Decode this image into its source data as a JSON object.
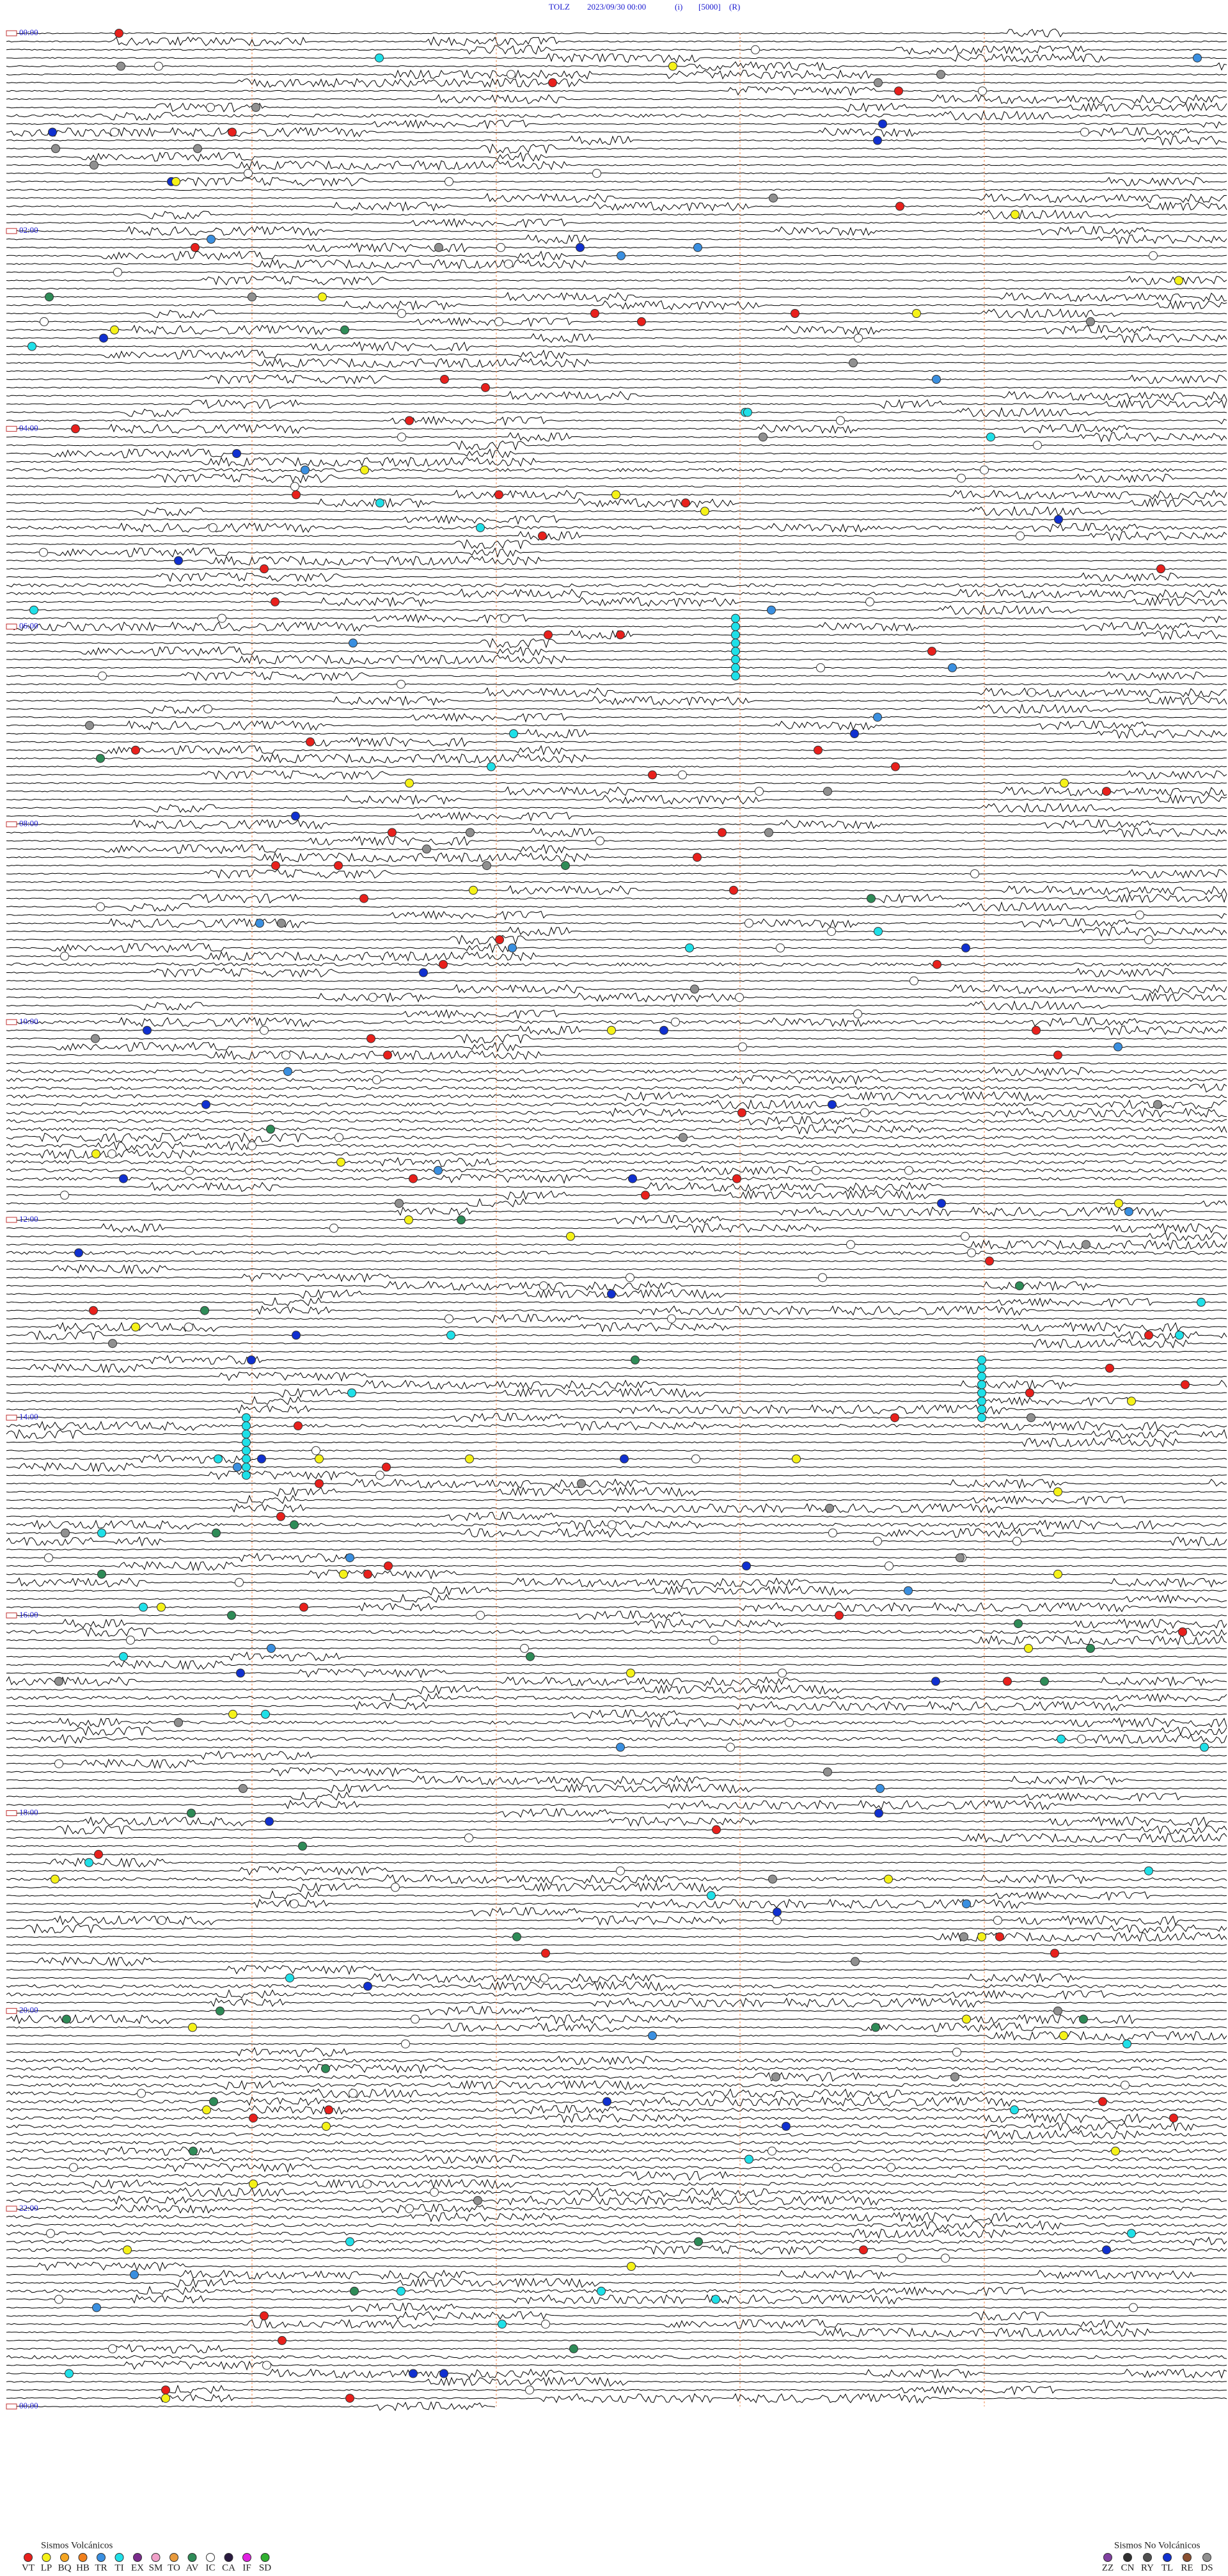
{
  "header": {
    "station": "TOLZ",
    "datetime": "2023/09/30 00:00",
    "mode": "(i)",
    "scale": "[5000]",
    "flag": "(R)"
  },
  "time_labels": [
    "00:00",
    "02:00",
    "04:00",
    "06:00",
    "08:00",
    "10:00",
    "12:00",
    "14:00",
    "16:00",
    "18:00",
    "20:00",
    "22:00",
    "00:00"
  ],
  "legend": {
    "volcanic": {
      "title": "Sismos Volcánicos",
      "items": [
        {
          "code": "VT",
          "color": "#e8201c"
        },
        {
          "code": "LP",
          "color": "#f5f218"
        },
        {
          "code": "BQ",
          "color": "#f5a623"
        },
        {
          "code": "HB",
          "color": "#f07f1c"
        },
        {
          "code": "TR",
          "color": "#3a8fe0"
        },
        {
          "code": "TI",
          "color": "#1fe0e8"
        },
        {
          "code": "EX",
          "color": "#7a2c8c"
        },
        {
          "code": "SM",
          "color": "#f0a0c8"
        },
        {
          "code": "TO",
          "color": "#e89a3c"
        },
        {
          "code": "AV",
          "color": "#2e8b57"
        },
        {
          "code": "IC",
          "color": "#ffffff"
        },
        {
          "code": "CA",
          "color": "#2a1a40"
        },
        {
          "code": "IF",
          "color": "#e020e0"
        },
        {
          "code": "SD",
          "color": "#30b030"
        }
      ]
    },
    "non_volcanic": {
      "title": "Sismos No Volcánicos",
      "items": [
        {
          "code": "ZZ",
          "color": "#8040a0"
        },
        {
          "code": "CN",
          "color": "#303030"
        },
        {
          "code": "RY",
          "color": "#505050"
        },
        {
          "code": "TL",
          "color": "#1030d0"
        },
        {
          "code": "RE",
          "color": "#8a5030"
        },
        {
          "code": "DS",
          "color": "#909090"
        }
      ]
    }
  }
}
